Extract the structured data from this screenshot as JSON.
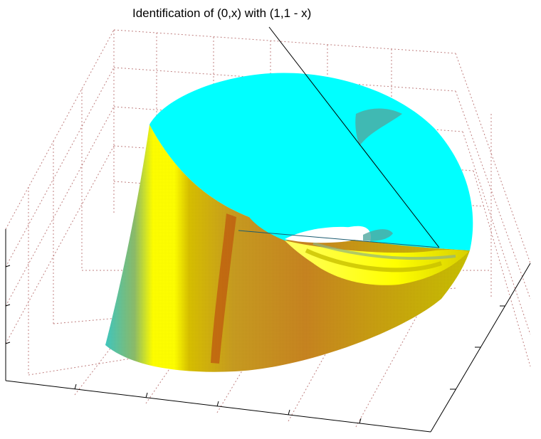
{
  "annotation": {
    "text": "Identification of (0,x) with (1,1 - x)"
  },
  "colors": {
    "background": "#ffffff",
    "grid": "#c08080",
    "axes": "#000000",
    "top_face": "#00ffff",
    "side_yellow": "#ffff00",
    "side_olive": "#c8b400",
    "side_orange": "#c87800",
    "side_teal": "#50b4a0",
    "pointer_line": "#000000"
  },
  "figure": {
    "type": "3d-surface",
    "subject": "mobius-band",
    "grid_visible": true
  }
}
